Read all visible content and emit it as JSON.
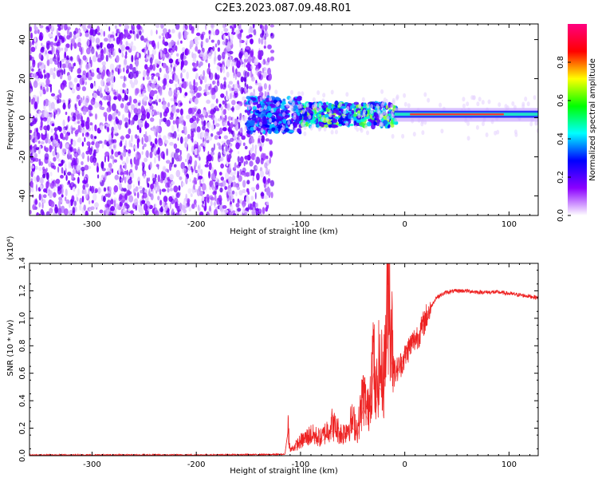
{
  "title": "C2E3.2023.087.09.48.R01",
  "chart_data": [
    {
      "type": "heatmap",
      "xlabel": "Height of straight line (km)",
      "ylabel": "Frequency (Hz)",
      "xlim": [
        -360,
        128
      ],
      "ylim": [
        -50,
        48
      ],
      "xticks": [
        -300,
        -200,
        -100,
        0,
        100
      ],
      "yticks": [
        -40,
        -20,
        0,
        20,
        40
      ],
      "colorbar": {
        "label": "Normalized spectral amplitude",
        "range": [
          0,
          1
        ],
        "ticks": [
          "0.0",
          "0.2",
          "0.4",
          "0.6",
          "0.8"
        ],
        "tick_values": [
          0,
          0.2,
          0.4,
          0.6,
          0.8
        ],
        "colors": [
          "#ffffff",
          "#8b00ff",
          "#0000ff",
          "#00ffff",
          "#00ff00",
          "#ffff00",
          "#ff0000",
          "#ff0080"
        ]
      },
      "regions": [
        {
          "x_from": -360,
          "x_to": -135,
          "freq_from": -50,
          "freq_to": 48,
          "amplitude": "low, broadband noise"
        },
        {
          "x_from": -150,
          "x_to": -100,
          "freq_from": -8,
          "freq_to": 10,
          "amplitude": "medium"
        },
        {
          "x_from": -100,
          "x_to": -10,
          "freq_from": -5,
          "freq_to": 6,
          "amplitude": "medium-high"
        },
        {
          "x_from": -10,
          "x_to": 128,
          "freq_from": 0,
          "freq_to": 4,
          "amplitude": "high (carrier line)"
        }
      ]
    },
    {
      "type": "line",
      "xlabel": "Height of straight line (km)",
      "ylabel": "SNR (10 * v/v)",
      "y_multiplier": "(x10⁴)",
      "xlim": [
        -360,
        128
      ],
      "ylim": [
        0,
        1.4
      ],
      "xticks": [
        -300,
        -200,
        -100,
        0,
        100
      ],
      "yticks": [
        "0.0",
        "0.2",
        "0.4",
        "0.6",
        "0.8",
        "1.0",
        "1.2",
        "1.4"
      ],
      "color": "#ee2222",
      "series": [
        {
          "x": [
            -360,
            -300,
            -200,
            -130,
            -115,
            -112,
            -110,
            -100,
            -90,
            -80,
            -70,
            -60,
            -50,
            -45,
            -40,
            -35,
            -30,
            -28,
            -25,
            -20,
            -15,
            -13,
            -10,
            -5,
            0,
            5,
            10,
            15,
            20,
            25,
            30,
            40,
            50,
            60,
            70,
            80,
            90,
            100,
            110,
            120,
            128
          ],
          "y": [
            0.005,
            0.005,
            0.005,
            0.008,
            0.01,
            0.18,
            0.03,
            0.08,
            0.12,
            0.1,
            0.18,
            0.12,
            0.2,
            0.15,
            0.35,
            0.25,
            0.6,
            0.3,
            0.5,
            0.45,
            1.05,
            0.7,
            0.6,
            0.65,
            0.72,
            0.8,
            0.85,
            0.9,
            1.0,
            1.08,
            1.15,
            1.19,
            1.2,
            1.2,
            1.19,
            1.19,
            1.19,
            1.18,
            1.17,
            1.16,
            1.15
          ]
        }
      ]
    }
  ]
}
